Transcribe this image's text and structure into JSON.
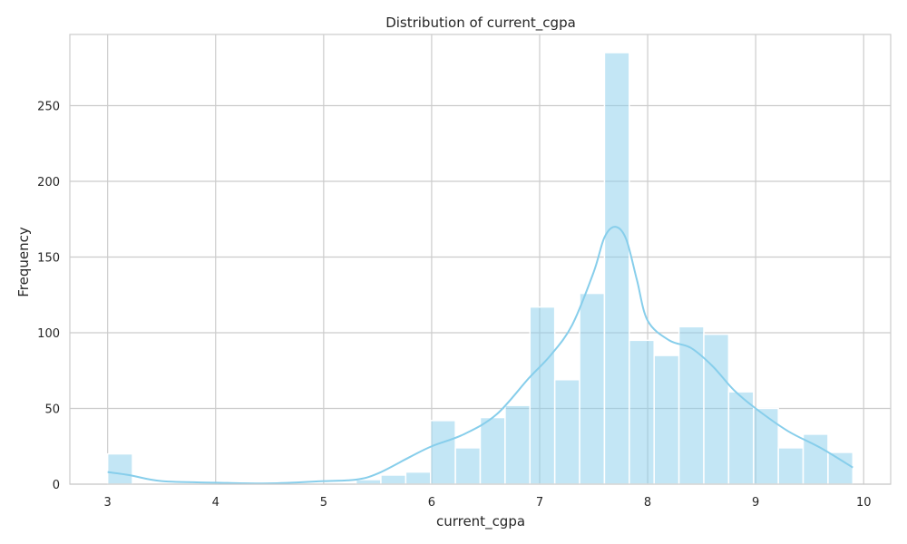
{
  "chart_data": {
    "type": "bar",
    "title": "Distribution of current_cgpa",
    "xlabel": "current_cgpa",
    "ylabel": "Frequency",
    "xlim": [
      2.65,
      10.25
    ],
    "ylim": [
      0,
      297
    ],
    "xticks": [
      3,
      4,
      5,
      6,
      7,
      8,
      9,
      10
    ],
    "yticks": [
      0,
      50,
      100,
      150,
      200,
      250
    ],
    "grid": true,
    "legend": "none",
    "bar_color": "#87ceeb",
    "kde_color": "#87ceeb",
    "grid_color": "#cccccc",
    "bins": [
      {
        "x0": 3.0,
        "x1": 3.23,
        "count": 20
      },
      {
        "x0": 3.23,
        "x1": 3.46,
        "count": 0
      },
      {
        "x0": 3.46,
        "x1": 3.69,
        "count": 0
      },
      {
        "x0": 3.69,
        "x1": 3.92,
        "count": 0
      },
      {
        "x0": 3.92,
        "x1": 4.15,
        "count": 0
      },
      {
        "x0": 4.15,
        "x1": 4.38,
        "count": 0
      },
      {
        "x0": 4.38,
        "x1": 4.61,
        "count": 0
      },
      {
        "x0": 4.61,
        "x1": 4.84,
        "count": 0
      },
      {
        "x0": 4.84,
        "x1": 5.07,
        "count": 0
      },
      {
        "x0": 5.07,
        "x1": 5.3,
        "count": 0
      },
      {
        "x0": 5.3,
        "x1": 5.53,
        "count": 3
      },
      {
        "x0": 5.53,
        "x1": 5.76,
        "count": 6
      },
      {
        "x0": 5.76,
        "x1": 5.99,
        "count": 8
      },
      {
        "x0": 5.99,
        "x1": 6.22,
        "count": 42
      },
      {
        "x0": 6.22,
        "x1": 6.45,
        "count": 24
      },
      {
        "x0": 6.45,
        "x1": 6.68,
        "count": 44
      },
      {
        "x0": 6.68,
        "x1": 6.91,
        "count": 52
      },
      {
        "x0": 6.91,
        "x1": 7.14,
        "count": 117
      },
      {
        "x0": 7.14,
        "x1": 7.37,
        "count": 69
      },
      {
        "x0": 7.37,
        "x1": 7.6,
        "count": 126
      },
      {
        "x0": 7.6,
        "x1": 7.83,
        "count": 285
      },
      {
        "x0": 7.83,
        "x1": 8.06,
        "count": 95
      },
      {
        "x0": 8.06,
        "x1": 8.29,
        "count": 85
      },
      {
        "x0": 8.29,
        "x1": 8.52,
        "count": 104
      },
      {
        "x0": 8.52,
        "x1": 8.75,
        "count": 99
      },
      {
        "x0": 8.75,
        "x1": 8.98,
        "count": 61
      },
      {
        "x0": 8.98,
        "x1": 9.21,
        "count": 50
      },
      {
        "x0": 9.21,
        "x1": 9.44,
        "count": 24
      },
      {
        "x0": 9.44,
        "x1": 9.67,
        "count": 33
      },
      {
        "x0": 9.67,
        "x1": 9.9,
        "count": 21
      }
    ],
    "kde": {
      "x": [
        3.0,
        3.2,
        3.5,
        4.0,
        4.5,
        5.0,
        5.3,
        5.5,
        5.8,
        6.0,
        6.3,
        6.6,
        6.9,
        7.1,
        7.3,
        7.5,
        7.6,
        7.7,
        7.8,
        7.9,
        8.0,
        8.2,
        8.4,
        8.6,
        8.8,
        9.0,
        9.3,
        9.6,
        9.9
      ],
      "y": [
        8,
        6,
        2,
        1,
        0.5,
        2,
        3,
        7,
        18,
        25,
        33,
        46,
        70,
        85,
        105,
        140,
        163,
        170,
        162,
        135,
        108,
        95,
        90,
        78,
        62,
        50,
        35,
        24,
        11
      ]
    }
  }
}
